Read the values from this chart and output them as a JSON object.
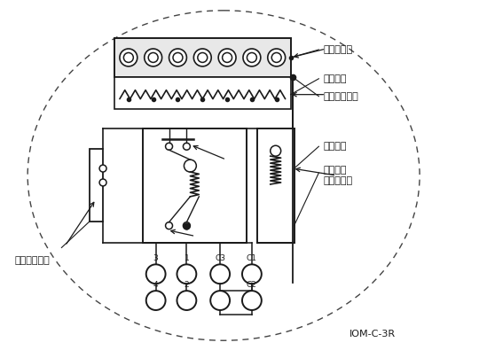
{
  "bg_color": "#ffffff",
  "line_color": "#1a1a1a",
  "dash_color": "#444444",
  "fig_width": 5.4,
  "fig_height": 4.04,
  "dpi": 100,
  "labels": {
    "denryu_seiteiban": "電流整定板",
    "genjiyoso": "限時要素",
    "genjiyoso_setten": "限時要素接点",
    "sokujiyoso": "即時要素",
    "hyojiki_hojo1": "表示器付",
    "hyojiki_hojo2": "補助接触器",
    "sokujiyoso_setten": "即時要素接点",
    "iom": "IOM-C-3R"
  }
}
